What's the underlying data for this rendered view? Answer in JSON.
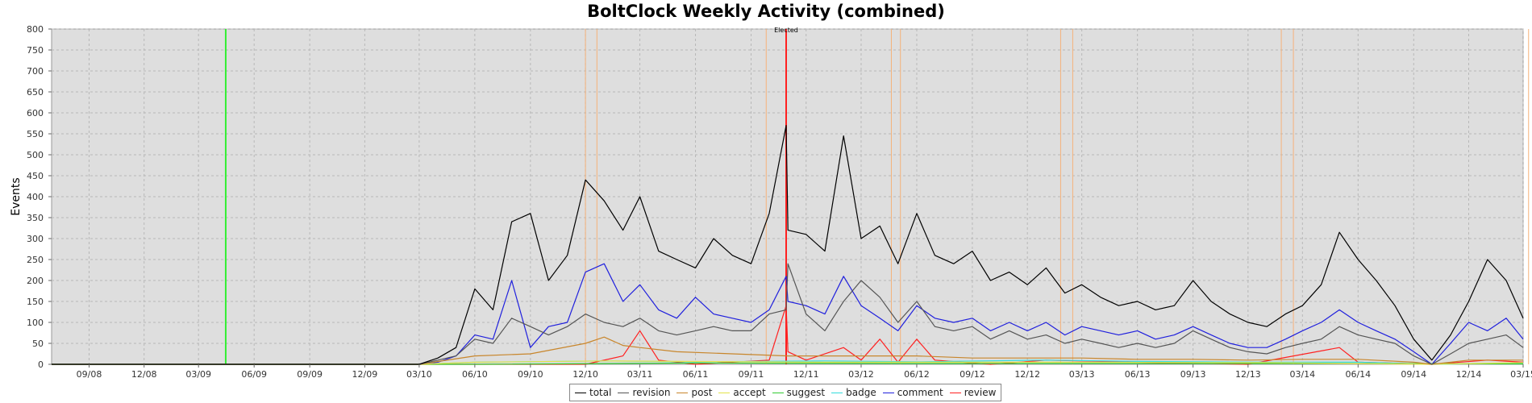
{
  "chart_data": {
    "type": "line",
    "title": "BoltClock Weekly Activity (combined)",
    "ylabel": "Events",
    "xlabel": "",
    "ylim": [
      0,
      800
    ],
    "yticks": [
      0,
      50,
      100,
      150,
      200,
      250,
      300,
      350,
      400,
      450,
      500,
      550,
      600,
      650,
      700,
      750,
      800
    ],
    "xlim": [
      "2008-07",
      "2015-03"
    ],
    "xticks": [
      "09/08",
      "12/08",
      "03/09",
      "06/09",
      "09/09",
      "12/09",
      "03/10",
      "06/10",
      "09/10",
      "12/10",
      "03/11",
      "06/11",
      "09/11",
      "12/11",
      "03/12",
      "06/12",
      "09/12",
      "12/12",
      "03/13",
      "06/13",
      "09/13",
      "12/13",
      "03/14",
      "06/14",
      "09/14",
      "12/14",
      "03/15"
    ],
    "grid": true,
    "legend_position": "bottom-center",
    "annotations": [
      {
        "text": "Elected",
        "date": "2011-10-29"
      }
    ],
    "marker_lines": [
      {
        "date": "2009-04-15",
        "color": "#33ee33"
      },
      {
        "date": "2011-10-29",
        "color": "#ff2020"
      },
      {
        "date": "2010-12-01",
        "color": "#f5b27a"
      },
      {
        "date": "2010-12-20",
        "color": "#f5b27a"
      },
      {
        "date": "2011-09-26",
        "color": "#f5b27a"
      },
      {
        "date": "2012-04-20",
        "color": "#f5b27a"
      },
      {
        "date": "2012-05-05",
        "color": "#f5b27a"
      },
      {
        "date": "2013-01-25",
        "color": "#f5b27a"
      },
      {
        "date": "2013-02-14",
        "color": "#f5b27a"
      },
      {
        "date": "2014-01-25",
        "color": "#f5b27a"
      },
      {
        "date": "2014-02-14",
        "color": "#f5b27a"
      },
      {
        "date": "2015-03-10",
        "color": "#f5b27a"
      }
    ],
    "series": [
      {
        "name": "total",
        "color": "#000000",
        "points": [
          [
            "2008-07",
            0
          ],
          [
            "2009-12",
            0
          ],
          [
            "2010-03",
            0
          ],
          [
            "2010-04",
            15
          ],
          [
            "2010-05",
            40
          ],
          [
            "2010-06",
            180
          ],
          [
            "2010-07",
            130
          ],
          [
            "2010-08",
            340
          ],
          [
            "2010-09",
            360
          ],
          [
            "2010-10",
            200
          ],
          [
            "2010-11",
            260
          ],
          [
            "2010-12",
            440
          ],
          [
            "2011-01",
            390
          ],
          [
            "2011-02",
            320
          ],
          [
            "2011-03",
            400
          ],
          [
            "2011-04",
            270
          ],
          [
            "2011-05",
            250
          ],
          [
            "2011-06",
            230
          ],
          [
            "2011-07",
            300
          ],
          [
            "2011-08",
            260
          ],
          [
            "2011-09",
            240
          ],
          [
            "2011-10",
            360
          ],
          [
            "2011-10-29",
            570
          ],
          [
            "2011-11",
            320
          ],
          [
            "2011-12",
            310
          ],
          [
            "2012-01",
            270
          ],
          [
            "2012-02",
            545
          ],
          [
            "2012-03",
            300
          ],
          [
            "2012-04",
            330
          ],
          [
            "2012-05",
            240
          ],
          [
            "2012-06",
            360
          ],
          [
            "2012-07",
            260
          ],
          [
            "2012-08",
            240
          ],
          [
            "2012-09",
            270
          ],
          [
            "2012-10",
            200
          ],
          [
            "2012-11",
            220
          ],
          [
            "2012-12",
            190
          ],
          [
            "2013-01",
            230
          ],
          [
            "2013-02",
            170
          ],
          [
            "2013-03",
            190
          ],
          [
            "2013-04",
            160
          ],
          [
            "2013-05",
            140
          ],
          [
            "2013-06",
            150
          ],
          [
            "2013-07",
            130
          ],
          [
            "2013-08",
            140
          ],
          [
            "2013-09",
            200
          ],
          [
            "2013-10",
            150
          ],
          [
            "2013-11",
            120
          ],
          [
            "2013-12",
            100
          ],
          [
            "2014-01",
            90
          ],
          [
            "2014-02",
            120
          ],
          [
            "2014-03",
            140
          ],
          [
            "2014-04",
            190
          ],
          [
            "2014-05",
            315
          ],
          [
            "2014-06",
            250
          ],
          [
            "2014-07",
            200
          ],
          [
            "2014-08",
            140
          ],
          [
            "2014-09",
            60
          ],
          [
            "2014-10",
            10
          ],
          [
            "2014-11",
            70
          ],
          [
            "2014-12",
            150
          ],
          [
            "2015-01",
            250
          ],
          [
            "2015-02",
            200
          ],
          [
            "2015-03",
            110
          ]
        ]
      },
      {
        "name": "revision",
        "color": "#555555",
        "points": [
          [
            "2008-07",
            0
          ],
          [
            "2010-03",
            0
          ],
          [
            "2010-04",
            10
          ],
          [
            "2010-05",
            20
          ],
          [
            "2010-06",
            60
          ],
          [
            "2010-07",
            50
          ],
          [
            "2010-08",
            110
          ],
          [
            "2010-09",
            90
          ],
          [
            "2010-10",
            70
          ],
          [
            "2010-11",
            90
          ],
          [
            "2010-12",
            120
          ],
          [
            "2011-01",
            100
          ],
          [
            "2011-02",
            90
          ],
          [
            "2011-03",
            110
          ],
          [
            "2011-04",
            80
          ],
          [
            "2011-05",
            70
          ],
          [
            "2011-06",
            80
          ],
          [
            "2011-07",
            90
          ],
          [
            "2011-08",
            80
          ],
          [
            "2011-09",
            80
          ],
          [
            "2011-10",
            120
          ],
          [
            "2011-10-29",
            130
          ],
          [
            "2011-11",
            240
          ],
          [
            "2011-12",
            120
          ],
          [
            "2012-01",
            80
          ],
          [
            "2012-02",
            150
          ],
          [
            "2012-03",
            200
          ],
          [
            "2012-04",
            160
          ],
          [
            "2012-05",
            100
          ],
          [
            "2012-06",
            150
          ],
          [
            "2012-07",
            90
          ],
          [
            "2012-08",
            80
          ],
          [
            "2012-09",
            90
          ],
          [
            "2012-10",
            60
          ],
          [
            "2012-11",
            80
          ],
          [
            "2012-12",
            60
          ],
          [
            "2013-01",
            70
          ],
          [
            "2013-02",
            50
          ],
          [
            "2013-03",
            60
          ],
          [
            "2013-04",
            50
          ],
          [
            "2013-05",
            40
          ],
          [
            "2013-06",
            50
          ],
          [
            "2013-07",
            40
          ],
          [
            "2013-08",
            50
          ],
          [
            "2013-09",
            80
          ],
          [
            "2013-10",
            60
          ],
          [
            "2013-11",
            40
          ],
          [
            "2013-12",
            30
          ],
          [
            "2014-01",
            25
          ],
          [
            "2014-02",
            40
          ],
          [
            "2014-03",
            50
          ],
          [
            "2014-04",
            60
          ],
          [
            "2014-05",
            90
          ],
          [
            "2014-06",
            70
          ],
          [
            "2014-07",
            60
          ],
          [
            "2014-08",
            50
          ],
          [
            "2014-09",
            20
          ],
          [
            "2014-10",
            0
          ],
          [
            "2014-11",
            25
          ],
          [
            "2014-12",
            50
          ],
          [
            "2015-01",
            60
          ],
          [
            "2015-02",
            70
          ],
          [
            "2015-03",
            40
          ]
        ]
      },
      {
        "name": "post",
        "color": "#c8862c",
        "points": [
          [
            "2008-07",
            0
          ],
          [
            "2010-03",
            0
          ],
          [
            "2010-06",
            20
          ],
          [
            "2010-09",
            25
          ],
          [
            "2010-12",
            50
          ],
          [
            "2011-01",
            65
          ],
          [
            "2011-02",
            45
          ],
          [
            "2011-03",
            40
          ],
          [
            "2011-05",
            30
          ],
          [
            "2011-08",
            25
          ],
          [
            "2011-11",
            20
          ],
          [
            "2012-03",
            20
          ],
          [
            "2012-06",
            20
          ],
          [
            "2012-09",
            15
          ],
          [
            "2012-12",
            15
          ],
          [
            "2013-03",
            15
          ],
          [
            "2013-06",
            12
          ],
          [
            "2013-09",
            12
          ],
          [
            "2013-12",
            10
          ],
          [
            "2014-03",
            12
          ],
          [
            "2014-06",
            12
          ],
          [
            "2014-09",
            5
          ],
          [
            "2014-10",
            0
          ],
          [
            "2014-12",
            10
          ],
          [
            "2015-03",
            10
          ]
        ]
      },
      {
        "name": "accept",
        "color": "#e3e34a",
        "points": [
          [
            "2008-07",
            0
          ],
          [
            "2010-03",
            0
          ],
          [
            "2010-06",
            5
          ],
          [
            "2011-01",
            8
          ],
          [
            "2012-01",
            5
          ],
          [
            "2013-01",
            5
          ],
          [
            "2014-01",
            4
          ],
          [
            "2014-10",
            0
          ],
          [
            "2015-03",
            4
          ]
        ]
      },
      {
        "name": "suggest",
        "color": "#33cc33",
        "points": [
          [
            "2008-07",
            0
          ],
          [
            "2010-06",
            0
          ],
          [
            "2011-06",
            3
          ],
          [
            "2012-06",
            2
          ],
          [
            "2013-06",
            2
          ],
          [
            "2014-06",
            2
          ],
          [
            "2015-03",
            1
          ]
        ]
      },
      {
        "name": "badge",
        "color": "#33dddd",
        "points": [
          [
            "2008-07",
            0
          ],
          [
            "2010-03",
            0
          ],
          [
            "2010-06",
            5
          ],
          [
            "2011-01",
            8
          ],
          [
            "2011-06",
            6
          ],
          [
            "2012-01",
            8
          ],
          [
            "2012-06",
            6
          ],
          [
            "2013-01",
            10
          ],
          [
            "2013-06",
            7
          ],
          [
            "2014-01",
            5
          ],
          [
            "2014-06",
            5
          ],
          [
            "2014-10",
            0
          ],
          [
            "2015-03",
            3
          ]
        ]
      },
      {
        "name": "comment",
        "color": "#2020dd",
        "points": [
          [
            "2008-07",
            0
          ],
          [
            "2010-03",
            0
          ],
          [
            "2010-04",
            5
          ],
          [
            "2010-05",
            20
          ],
          [
            "2010-06",
            70
          ],
          [
            "2010-07",
            60
          ],
          [
            "2010-08",
            200
          ],
          [
            "2010-09",
            40
          ],
          [
            "2010-10",
            90
          ],
          [
            "2010-11",
            100
          ],
          [
            "2010-12",
            220
          ],
          [
            "2011-01",
            240
          ],
          [
            "2011-02",
            150
          ],
          [
            "2011-03",
            190
          ],
          [
            "2011-04",
            130
          ],
          [
            "2011-05",
            110
          ],
          [
            "2011-06",
            160
          ],
          [
            "2011-07",
            120
          ],
          [
            "2011-08",
            110
          ],
          [
            "2011-09",
            100
          ],
          [
            "2011-10",
            130
          ],
          [
            "2011-10-29",
            210
          ],
          [
            "2011-11",
            150
          ],
          [
            "2011-12",
            140
          ],
          [
            "2012-01",
            120
          ],
          [
            "2012-02",
            210
          ],
          [
            "2012-03",
            140
          ],
          [
            "2012-04",
            110
          ],
          [
            "2012-05",
            80
          ],
          [
            "2012-06",
            140
          ],
          [
            "2012-07",
            110
          ],
          [
            "2012-08",
            100
          ],
          [
            "2012-09",
            110
          ],
          [
            "2012-10",
            80
          ],
          [
            "2012-11",
            100
          ],
          [
            "2012-12",
            80
          ],
          [
            "2013-01",
            100
          ],
          [
            "2013-02",
            70
          ],
          [
            "2013-03",
            90
          ],
          [
            "2013-04",
            80
          ],
          [
            "2013-05",
            70
          ],
          [
            "2013-06",
            80
          ],
          [
            "2013-07",
            60
          ],
          [
            "2013-08",
            70
          ],
          [
            "2013-09",
            90
          ],
          [
            "2013-10",
            70
          ],
          [
            "2013-11",
            50
          ],
          [
            "2013-12",
            40
          ],
          [
            "2014-01",
            40
          ],
          [
            "2014-02",
            60
          ],
          [
            "2014-03",
            80
          ],
          [
            "2014-04",
            100
          ],
          [
            "2014-05",
            130
          ],
          [
            "2014-06",
            100
          ],
          [
            "2014-07",
            80
          ],
          [
            "2014-08",
            60
          ],
          [
            "2014-09",
            30
          ],
          [
            "2014-10",
            0
          ],
          [
            "2014-11",
            50
          ],
          [
            "2014-12",
            100
          ],
          [
            "2015-01",
            80
          ],
          [
            "2015-02",
            110
          ],
          [
            "2015-03",
            60
          ]
        ]
      },
      {
        "name": "review",
        "color": "#ff2020",
        "points": [
          [
            "2008-07",
            0
          ],
          [
            "2010-12",
            0
          ],
          [
            "2011-02",
            20
          ],
          [
            "2011-03",
            80
          ],
          [
            "2011-04",
            10
          ],
          [
            "2011-06",
            0
          ],
          [
            "2011-10",
            10
          ],
          [
            "2011-10-29",
            140
          ],
          [
            "2011-11",
            30
          ],
          [
            "2011-12",
            10
          ],
          [
            "2012-02",
            40
          ],
          [
            "2012-03",
            10
          ],
          [
            "2012-04",
            60
          ],
          [
            "2012-05",
            5
          ],
          [
            "2012-06",
            60
          ],
          [
            "2012-07",
            10
          ],
          [
            "2012-10",
            0
          ],
          [
            "2013-01",
            10
          ],
          [
            "2013-06",
            5
          ],
          [
            "2013-12",
            0
          ],
          [
            "2014-05",
            40
          ],
          [
            "2014-06",
            5
          ],
          [
            "2014-10",
            0
          ],
          [
            "2015-01",
            10
          ],
          [
            "2015-03",
            5
          ]
        ]
      }
    ]
  }
}
